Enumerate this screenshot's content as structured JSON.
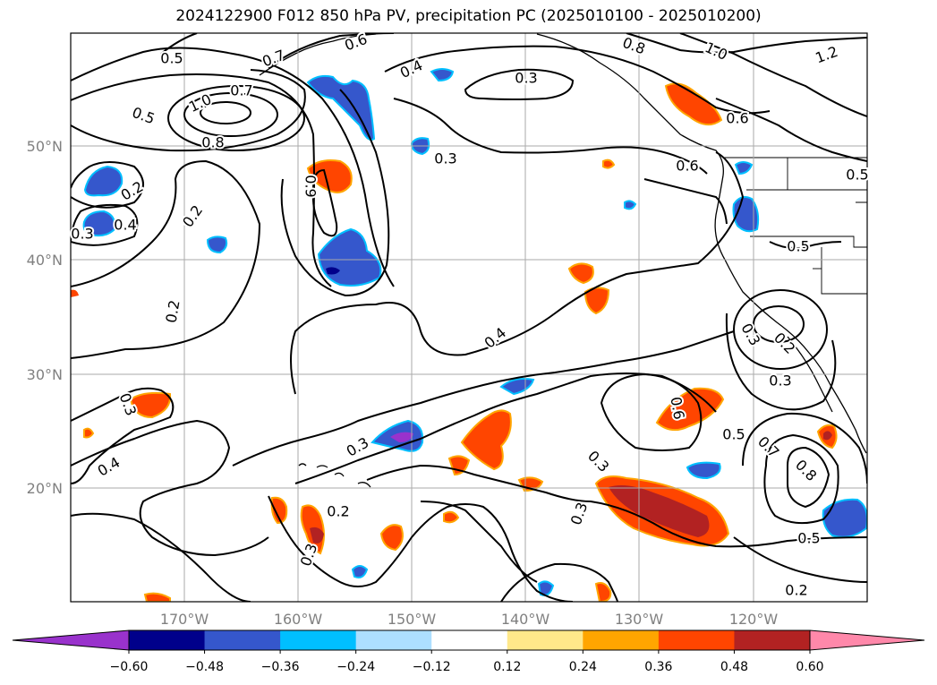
{
  "title": "2024122900 F012 850 hPa PV, precipitation PC (2025010100 - 2025010200)",
  "lat_labels": [
    "50°N",
    "40°N",
    "30°N",
    "20°N"
  ],
  "lon_labels": [
    "170°W",
    "160°W",
    "150°W",
    "140°W",
    "130°W",
    "120°W"
  ],
  "contour_labels": [
    "0.5",
    "0.7",
    "0.6",
    "0.4",
    "0.8",
    "1.0",
    "1.2",
    "0.3",
    "0.6",
    "0.9",
    "1.0",
    "0.8",
    "0.7",
    "0.5",
    "0.2",
    "0.4",
    "0.2",
    "0.3",
    "0.2",
    "0.4",
    "0.3",
    "0.3",
    "0.4",
    "0.6",
    "0.5",
    "0.5",
    "0.3",
    "0.2",
    "0.3",
    "0.3",
    "0.3",
    "0.5",
    "0.6",
    "0.7",
    "0.8",
    "0.5",
    "0.2",
    "0.3",
    "0.2",
    "0.3"
  ],
  "colorbar": {
    "colors": [
      "#9932cc",
      "#00008b",
      "#3557cc",
      "#00bfff",
      "#addfff",
      "#ffffff",
      "#ffe88a",
      "#ffa500",
      "#ff4500",
      "#b22222",
      "#ff88aa"
    ],
    "tick_labels": [
      "−0.60",
      "−0.48",
      "−0.36",
      "−0.24",
      "−0.12",
      "0.12",
      "0.24",
      "0.36",
      "0.48",
      "0.60"
    ]
  }
}
